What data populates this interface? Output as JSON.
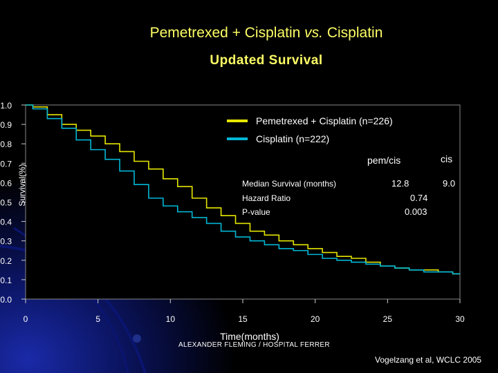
{
  "slide": {
    "title_line1": "Pemetrexed + Cisplatin",
    "title_line1_italic": "vs.",
    "title_line1_end": "Cisplatin",
    "title_line2": "Updated Survival",
    "credit": "ALEXANDER FLEMING / HOSPITAL FERRER",
    "source": "Vogelzang et al, WCLC 2005"
  },
  "colors": {
    "title": "#ffff66",
    "pemetrexed": "#e6e600",
    "cisplatin": "#00b7d6",
    "text": "#ffffff",
    "plot_bg": "#000000"
  },
  "chart_data": {
    "type": "line",
    "title": "Updated Survival",
    "xlabel": "Time(months)",
    "ylabel": "Survival(%)",
    "xlim": [
      0,
      30
    ],
    "ylim": [
      0,
      1.0
    ],
    "xticks": [
      0,
      5,
      10,
      15,
      20,
      25,
      30
    ],
    "xtick_labels": [
      "0",
      "5",
      "10",
      "15",
      "20",
      "25",
      "30"
    ],
    "yticks": [
      0.0,
      0.1,
      0.2,
      0.3,
      0.4,
      0.5,
      0.6,
      0.7,
      0.8,
      0.9,
      1.0
    ],
    "ytick_labels": [
      "0.0",
      "0.1",
      "0.2",
      "0.3",
      "0.4",
      "0.5",
      "0.6",
      "0.7",
      "0.8",
      "0.9",
      "1.0"
    ],
    "series": [
      {
        "name": "Pemetrexed + Cisplatin (n=226)",
        "x": [
          0,
          1,
          2,
          3,
          4,
          5,
          6,
          7,
          8,
          9,
          10,
          11,
          12,
          13,
          14,
          15,
          16,
          17,
          18,
          19,
          20,
          21,
          22,
          23,
          24,
          25,
          26,
          27,
          28,
          29,
          30
        ],
        "y": [
          1.0,
          0.99,
          0.95,
          0.9,
          0.87,
          0.84,
          0.8,
          0.76,
          0.71,
          0.67,
          0.62,
          0.58,
          0.52,
          0.47,
          0.43,
          0.39,
          0.35,
          0.33,
          0.3,
          0.28,
          0.26,
          0.24,
          0.22,
          0.21,
          0.19,
          0.17,
          0.16,
          0.15,
          0.15,
          0.14,
          0.13
        ]
      },
      {
        "name": "Cisplatin (n=222)",
        "x": [
          0,
          1,
          2,
          3,
          4,
          5,
          6,
          7,
          8,
          9,
          10,
          11,
          12,
          13,
          14,
          15,
          16,
          17,
          18,
          19,
          20,
          21,
          22,
          23,
          24,
          25,
          26,
          27,
          28,
          29,
          30
        ],
        "y": [
          1.0,
          0.98,
          0.93,
          0.88,
          0.82,
          0.77,
          0.72,
          0.66,
          0.59,
          0.52,
          0.48,
          0.45,
          0.42,
          0.39,
          0.35,
          0.32,
          0.3,
          0.28,
          0.26,
          0.25,
          0.23,
          0.21,
          0.2,
          0.19,
          0.18,
          0.17,
          0.16,
          0.15,
          0.14,
          0.14,
          0.13
        ]
      }
    ],
    "legend_position": "top-right",
    "stats": {
      "header_pem": "pem/cis",
      "header_cis": "cis",
      "median_label": "Median Survival (months)",
      "median_pem": "12.8",
      "median_cis": "9.0",
      "hazard_label": "Hazard Ratio",
      "hazard_value": "0.74",
      "p_label": "P-value",
      "p_value": "0.003"
    }
  }
}
